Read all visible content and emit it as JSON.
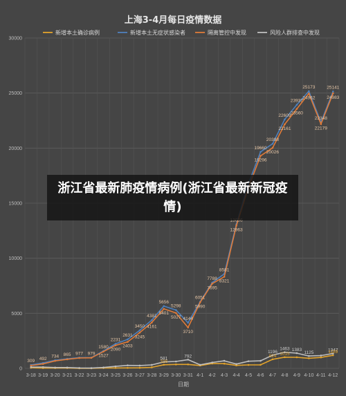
{
  "chart_data": {
    "type": "line",
    "title": "上海3-4月每日疫情数据",
    "xlabel": "日期",
    "ylabel": "",
    "ylim": [
      0,
      30000
    ],
    "yticks": [
      0,
      5000,
      10000,
      15000,
      20000,
      25000,
      30000
    ],
    "grid": true,
    "legend_position": "top",
    "categories": [
      "3-18",
      "3-19",
      "3-20",
      "3-21",
      "3-22",
      "3-23",
      "3-24",
      "3-25",
      "3-26",
      "3-27",
      "3-28",
      "3-29",
      "3-30",
      "3-31",
      "4-1",
      "4-2",
      "4-3",
      "4-4",
      "4-5",
      "4-6",
      "4-7",
      "4-8",
      "4-9",
      "4-10",
      "4-11",
      "4-12"
    ],
    "series": [
      {
        "name": "新增本土确诊病例",
        "color": "#e3a32b",
        "values": [
          57,
          24,
          24,
          31,
          4,
          4,
          29,
          38,
          45,
          50,
          96,
          326,
          355,
          358,
          260,
          438,
          425,
          268,
          311,
          322,
          824,
          1015,
          1006,
          914,
          994,
          1189
        ]
      },
      {
        "name": "新增本土无症状感染者",
        "color": "#4f81bd",
        "values": [
          309,
          492,
          734,
          865,
          977,
          979,
          1580,
          2231,
          2631,
          3450,
          4381,
          5656,
          5298,
          4144,
          6051,
          7788,
          8581,
          13086,
          16766,
          19660,
          20398,
          22609,
          23937,
          25173,
          22348,
          25141
        ]
      },
      {
        "name": "隔离管控中发现",
        "color": "#e07b39",
        "values": [
          252,
          404,
          680,
          822,
          941,
          957,
          1527,
          2090,
          2403,
          3245,
          4161,
          5401,
          5027,
          3710,
          5990,
          7695,
          8321,
          12963,
          16429,
          19296,
          20026,
          22161,
          23560,
          24962,
          22179,
          24983
        ]
      },
      {
        "name": "风险人群排查中发现",
        "color": "#bfbfbf",
        "values": [
          114,
          112,
          78,
          74,
          40,
          26,
          82,
          179,
          273,
          255,
          316,
          581,
          626,
          792,
          321,
          531,
          685,
          391,
          648,
          686,
          1196,
          1463,
          1383,
          1125,
          1163,
          1347
        ]
      }
    ],
    "data_labels": [
      {
        "series": 1,
        "index": 0,
        "text": "309"
      },
      {
        "series": 1,
        "index": 1,
        "text": "492"
      },
      {
        "series": 1,
        "index": 2,
        "text": "734"
      },
      {
        "series": 1,
        "index": 3,
        "text": "865"
      },
      {
        "series": 1,
        "index": 4,
        "text": "977"
      },
      {
        "series": 1,
        "index": 5,
        "text": "979"
      },
      {
        "series": 1,
        "index": 6,
        "text": "1580"
      },
      {
        "series": 1,
        "index": 7,
        "text": "2231"
      },
      {
        "series": 1,
        "index": 8,
        "text": "2631"
      },
      {
        "series": 1,
        "index": 9,
        "text": "3450"
      },
      {
        "series": 1,
        "index": 10,
        "text": "4381"
      },
      {
        "series": 1,
        "index": 11,
        "text": "5656"
      },
      {
        "series": 1,
        "index": 12,
        "text": "5298"
      },
      {
        "series": 1,
        "index": 13,
        "text": "4144"
      },
      {
        "series": 1,
        "index": 14,
        "text": "6051"
      },
      {
        "series": 1,
        "index": 15,
        "text": "7788"
      },
      {
        "series": 1,
        "index": 16,
        "text": "8581"
      },
      {
        "series": 1,
        "index": 17,
        "text": "13086"
      },
      {
        "series": 1,
        "index": 19,
        "text": "19660"
      },
      {
        "series": 1,
        "index": 20,
        "text": "20398"
      },
      {
        "series": 1,
        "index": 21,
        "text": "22609"
      },
      {
        "series": 1,
        "index": 22,
        "text": "23937"
      },
      {
        "series": 1,
        "index": 23,
        "text": "25173"
      },
      {
        "series": 1,
        "index": 24,
        "text": "22348"
      },
      {
        "series": 1,
        "index": 25,
        "text": "25141"
      },
      {
        "series": 2,
        "index": 6,
        "text": "1527"
      },
      {
        "series": 2,
        "index": 7,
        "text": "2090"
      },
      {
        "series": 2,
        "index": 8,
        "text": "2403"
      },
      {
        "series": 2,
        "index": 9,
        "text": "3245"
      },
      {
        "series": 2,
        "index": 10,
        "text": "4161"
      },
      {
        "series": 2,
        "index": 11,
        "text": "5401"
      },
      {
        "series": 2,
        "index": 12,
        "text": "5027"
      },
      {
        "series": 2,
        "index": 13,
        "text": "3710"
      },
      {
        "series": 2,
        "index": 14,
        "text": "5990"
      },
      {
        "series": 2,
        "index": 15,
        "text": "7695"
      },
      {
        "series": 2,
        "index": 16,
        "text": "8321"
      },
      {
        "series": 2,
        "index": 17,
        "text": "12963"
      },
      {
        "series": 2,
        "index": 19,
        "text": "19296"
      },
      {
        "series": 2,
        "index": 20,
        "text": "20026"
      },
      {
        "series": 2,
        "index": 21,
        "text": "22161"
      },
      {
        "series": 2,
        "index": 22,
        "text": "23560"
      },
      {
        "series": 2,
        "index": 23,
        "text": "24962"
      },
      {
        "series": 2,
        "index": 24,
        "text": "22179"
      },
      {
        "series": 2,
        "index": 25,
        "text": "24983"
      },
      {
        "series": 3,
        "index": 11,
        "text": "581"
      },
      {
        "series": 3,
        "index": 13,
        "text": "792"
      },
      {
        "series": 3,
        "index": 20,
        "text": "1196"
      },
      {
        "series": 3,
        "index": 21,
        "text": "1463"
      },
      {
        "series": 3,
        "index": 22,
        "text": "1383"
      },
      {
        "series": 3,
        "index": 23,
        "text": "1125"
      },
      {
        "series": 3,
        "index": 25,
        "text": "1347"
      },
      {
        "series": 0,
        "index": 11,
        "text": "326"
      },
      {
        "series": 0,
        "index": 20,
        "text": "824"
      },
      {
        "series": 0,
        "index": 21,
        "text": "1015"
      },
      {
        "series": 0,
        "index": 25,
        "text": "1189"
      }
    ]
  },
  "overlay": {
    "text": "浙江省最新肺疫情病例(浙江省最新新冠疫情)"
  }
}
